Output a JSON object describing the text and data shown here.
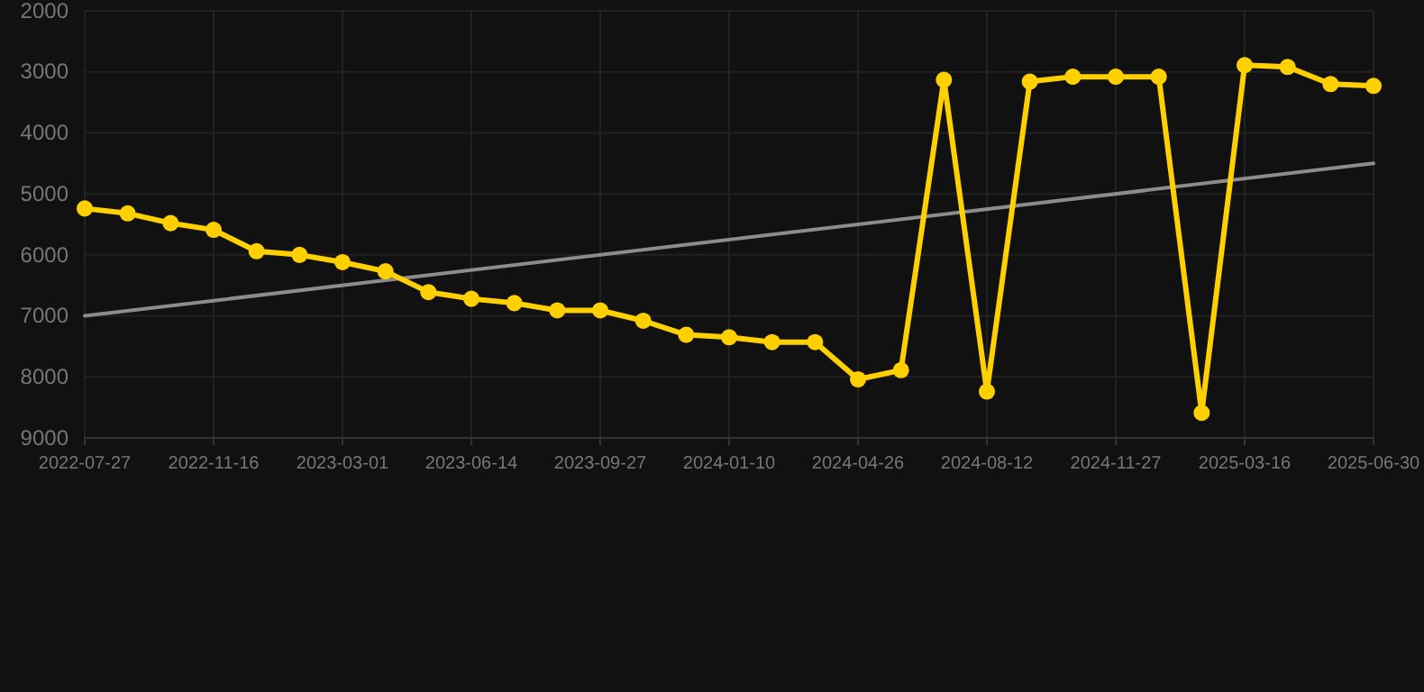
{
  "chart_data": {
    "type": "line",
    "categories": [
      "2022-07-27",
      null,
      null,
      "2022-11-16",
      null,
      null,
      "2023-03-01",
      null,
      null,
      "2023-06-14",
      null,
      null,
      "2023-09-27",
      null,
      null,
      "2024-01-10",
      null,
      null,
      "2024-04-26",
      null,
      null,
      "2024-08-12",
      null,
      null,
      "2024-11-27",
      null,
      null,
      "2025-03-16",
      null,
      null,
      "2025-06-30"
    ],
    "series": [
      {
        "color": "#ffd000",
        "marker": "circle",
        "values": [
          5240,
          5320,
          5480,
          5590,
          5940,
          6000,
          6120,
          6270,
          6610,
          6720,
          6790,
          6910,
          6910,
          7080,
          7310,
          7350,
          7430,
          7430,
          8040,
          7890,
          3130,
          8240,
          3160,
          3080,
          3080,
          3080,
          8590,
          2890,
          2920,
          3200,
          3230
        ]
      },
      {
        "color": "#8c8c8c",
        "marker": "none",
        "values": [
          7000,
          null,
          null,
          null,
          null,
          null,
          null,
          null,
          null,
          null,
          null,
          null,
          null,
          null,
          null,
          null,
          null,
          null,
          null,
          null,
          null,
          null,
          null,
          null,
          null,
          null,
          null,
          null,
          null,
          null,
          4500
        ]
      }
    ],
    "ylim": [
      9000,
      2000
    ],
    "yticks": [
      2000,
      3000,
      4000,
      5000,
      6000,
      7000,
      8000,
      9000
    ],
    "grid": true,
    "line_style": "solid"
  }
}
